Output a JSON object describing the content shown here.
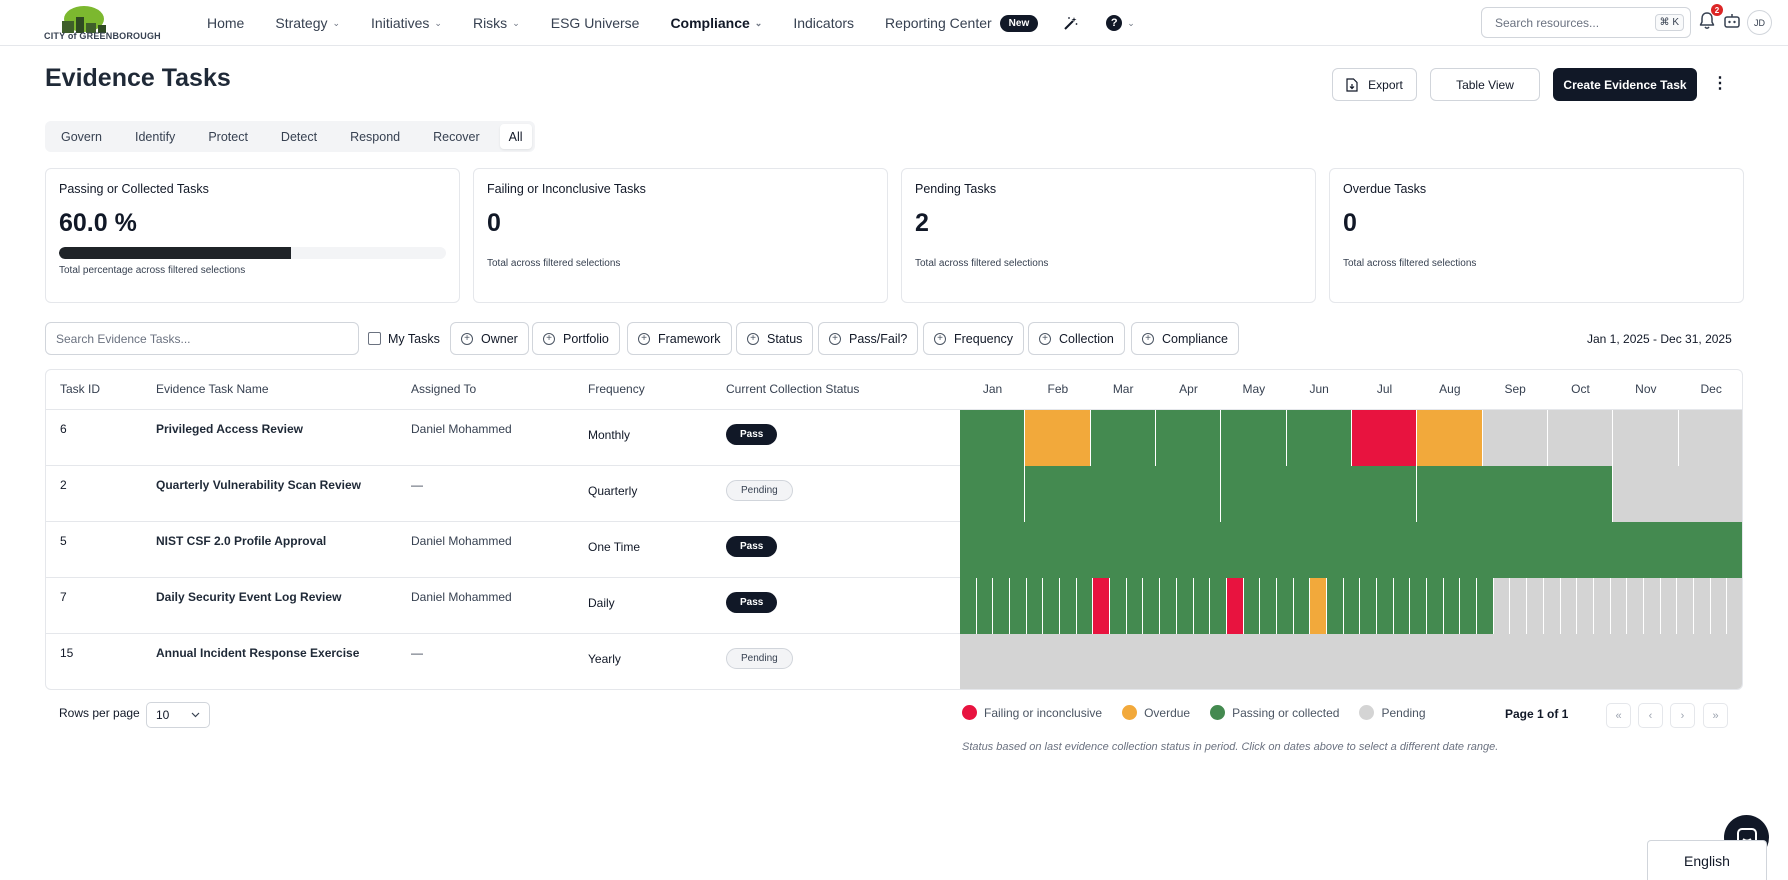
{
  "brand": {
    "logo_text": "CITY of GREENBOROUGH"
  },
  "nav": {
    "items": [
      {
        "label": "Home",
        "dropdown": false,
        "active": false
      },
      {
        "label": "Strategy",
        "dropdown": true,
        "active": false
      },
      {
        "label": "Initiatives",
        "dropdown": true,
        "active": false
      },
      {
        "label": "Risks",
        "dropdown": true,
        "active": false
      },
      {
        "label": "ESG Universe",
        "dropdown": false,
        "active": false
      },
      {
        "label": "Compliance",
        "dropdown": true,
        "active": true
      },
      {
        "label": "Indicators",
        "dropdown": false,
        "active": false
      },
      {
        "label": "Reporting Center",
        "dropdown": false,
        "active": false
      }
    ],
    "new_badge": "New",
    "search_placeholder": "Search resources...",
    "search_shortcut": "⌘ K",
    "notification_count": "2",
    "avatar_initials": "JD"
  },
  "page": {
    "title": "Evidence Tasks",
    "export_label": "Export",
    "table_view_label": "Table View",
    "create_label": "Create Evidence Task",
    "more_glyph": "⋮"
  },
  "tabs": [
    "Govern",
    "Identify",
    "Protect",
    "Detect",
    "Respond",
    "Recover",
    "All"
  ],
  "active_tab": "All",
  "cards": [
    {
      "title": "Passing or Collected Tasks",
      "value": "60.0 %",
      "progress": 0.6,
      "subtitle": "Total percentage across filtered selections"
    },
    {
      "title": "Failing or Inconclusive Tasks",
      "value": "0",
      "subtitle": "Total across filtered selections"
    },
    {
      "title": "Pending Tasks",
      "value": "2",
      "subtitle": "Total across filtered selections"
    },
    {
      "title": "Overdue Tasks",
      "value": "0",
      "subtitle": "Total across filtered selections"
    }
  ],
  "filters": {
    "search_placeholder": "Search Evidence Tasks...",
    "my_tasks_label": "My Tasks",
    "chips": [
      "Owner",
      "Portfolio",
      "Framework",
      "Status",
      "Pass/Fail?",
      "Frequency",
      "Collection",
      "Compliance"
    ],
    "date_range": "Jan 1, 2025 - Dec 31, 2025"
  },
  "table": {
    "columns": [
      "Task ID",
      "Evidence Task Name",
      "Assigned To",
      "Frequency",
      "Current Collection Status"
    ],
    "months": [
      "Jan",
      "Feb",
      "Mar",
      "Apr",
      "May",
      "Jun",
      "Jul",
      "Aug",
      "Sep",
      "Oct",
      "Nov",
      "Dec"
    ],
    "rows": [
      {
        "id": "6",
        "name": "Privileged Access Review",
        "assigned": "Daniel Mohammed",
        "frequency": "Monthly",
        "status": "Pass"
      },
      {
        "id": "2",
        "name": "Quarterly Vulnerability Scan Review",
        "assigned": "—",
        "frequency": "Quarterly",
        "status": "Pending"
      },
      {
        "id": "5",
        "name": "NIST CSF 2.0 Profile Approval",
        "assigned": "Daniel Mohammed",
        "frequency": "One Time",
        "status": "Pass"
      },
      {
        "id": "7",
        "name": "Daily Security Event Log Review",
        "assigned": "Daniel Mohammed",
        "frequency": "Daily",
        "status": "Pass"
      },
      {
        "id": "15",
        "name": "Annual Incident Response Exercise",
        "assigned": "—",
        "frequency": "Yearly",
        "status": "Pending"
      }
    ]
  },
  "status_colors": {
    "fail": "#e8133f",
    "overdue": "#f2a93b",
    "pass": "#448a50",
    "pending": "#d4d4d4"
  },
  "legend": [
    {
      "label": "Failing or inconclusive",
      "color": "#e8133f"
    },
    {
      "label": "Overdue",
      "color": "#f2a93b"
    },
    {
      "label": "Passing or collected",
      "color": "#448a50"
    },
    {
      "label": "Pending",
      "color": "#d4d4d4"
    }
  ],
  "footer": {
    "rows_per_page_label": "Rows per page",
    "rows_per_page_value": "10",
    "page_label": "Page 1 of 1",
    "note": "Status based on last evidence collection status in period.  Click on dates above to select a different date range."
  },
  "language": "English"
}
